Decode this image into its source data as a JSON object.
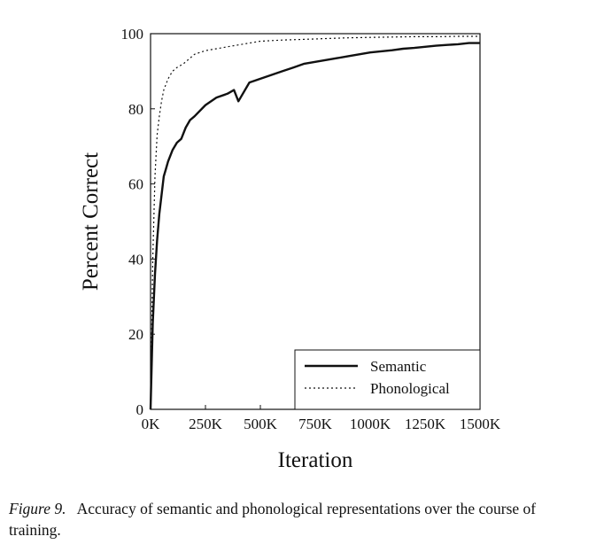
{
  "chart_data": {
    "type": "line",
    "xlabel": "Iteration",
    "ylabel": "Percent Correct",
    "xlim": [
      0,
      1500000
    ],
    "ylim": [
      0,
      100
    ],
    "x_ticks": [
      {
        "value": 0,
        "label": "0K"
      },
      {
        "value": 250000,
        "label": "250K"
      },
      {
        "value": 500000,
        "label": "500K"
      },
      {
        "value": 750000,
        "label": "750K"
      },
      {
        "value": 1000000,
        "label": "1000K"
      },
      {
        "value": 1250000,
        "label": "1250K"
      },
      {
        "value": 1500000,
        "label": "1500K"
      }
    ],
    "y_ticks": [
      {
        "value": 0,
        "label": "0"
      },
      {
        "value": 20,
        "label": "20"
      },
      {
        "value": 40,
        "label": "40"
      },
      {
        "value": 60,
        "label": "60"
      },
      {
        "value": 80,
        "label": "80"
      },
      {
        "value": 100,
        "label": "100"
      }
    ],
    "grid": false,
    "legend_position": "bottom-right",
    "series": [
      {
        "name": "Semantic",
        "style": "solid",
        "color": "#111111",
        "x": [
          0,
          10000,
          20000,
          30000,
          40000,
          50000,
          60000,
          70000,
          80000,
          100000,
          120000,
          140000,
          160000,
          180000,
          200000,
          250000,
          300000,
          350000,
          380000,
          400000,
          450000,
          500000,
          550000,
          600000,
          650000,
          700000,
          750000,
          800000,
          850000,
          900000,
          950000,
          1000000,
          1050000,
          1100000,
          1150000,
          1200000,
          1250000,
          1300000,
          1350000,
          1400000,
          1450000,
          1500000
        ],
        "y": [
          0,
          23,
          36,
          45,
          52,
          57,
          62,
          64,
          66,
          69,
          71,
          72,
          75,
          77,
          78,
          81,
          83,
          84,
          85,
          82,
          87,
          88,
          89,
          90,
          91,
          92,
          92.5,
          93,
          93.5,
          94,
          94.5,
          95,
          95.3,
          95.6,
          96,
          96.2,
          96.5,
          96.8,
          97,
          97.2,
          97.5,
          97.5
        ]
      },
      {
        "name": "Phonological",
        "style": "dotted",
        "color": "#111111",
        "x": [
          0,
          10000,
          20000,
          30000,
          40000,
          50000,
          60000,
          80000,
          100000,
          120000,
          150000,
          200000,
          250000,
          300000,
          350000,
          400000,
          450000,
          500000,
          600000,
          700000,
          800000,
          900000,
          1000000,
          1100000,
          1200000,
          1300000,
          1400000,
          1500000
        ],
        "y": [
          0,
          40,
          62,
          73,
          78,
          82,
          85,
          88,
          90,
          91,
          92,
          94.5,
          95.5,
          96,
          96.5,
          97,
          97.5,
          98,
          98.3,
          98.5,
          98.7,
          98.9,
          99,
          99.1,
          99.2,
          99.2,
          99.3,
          99.3
        ]
      }
    ]
  },
  "caption": {
    "label": "Figure 9.",
    "text": "Accuracy of semantic and phonological representations over the course of training."
  }
}
